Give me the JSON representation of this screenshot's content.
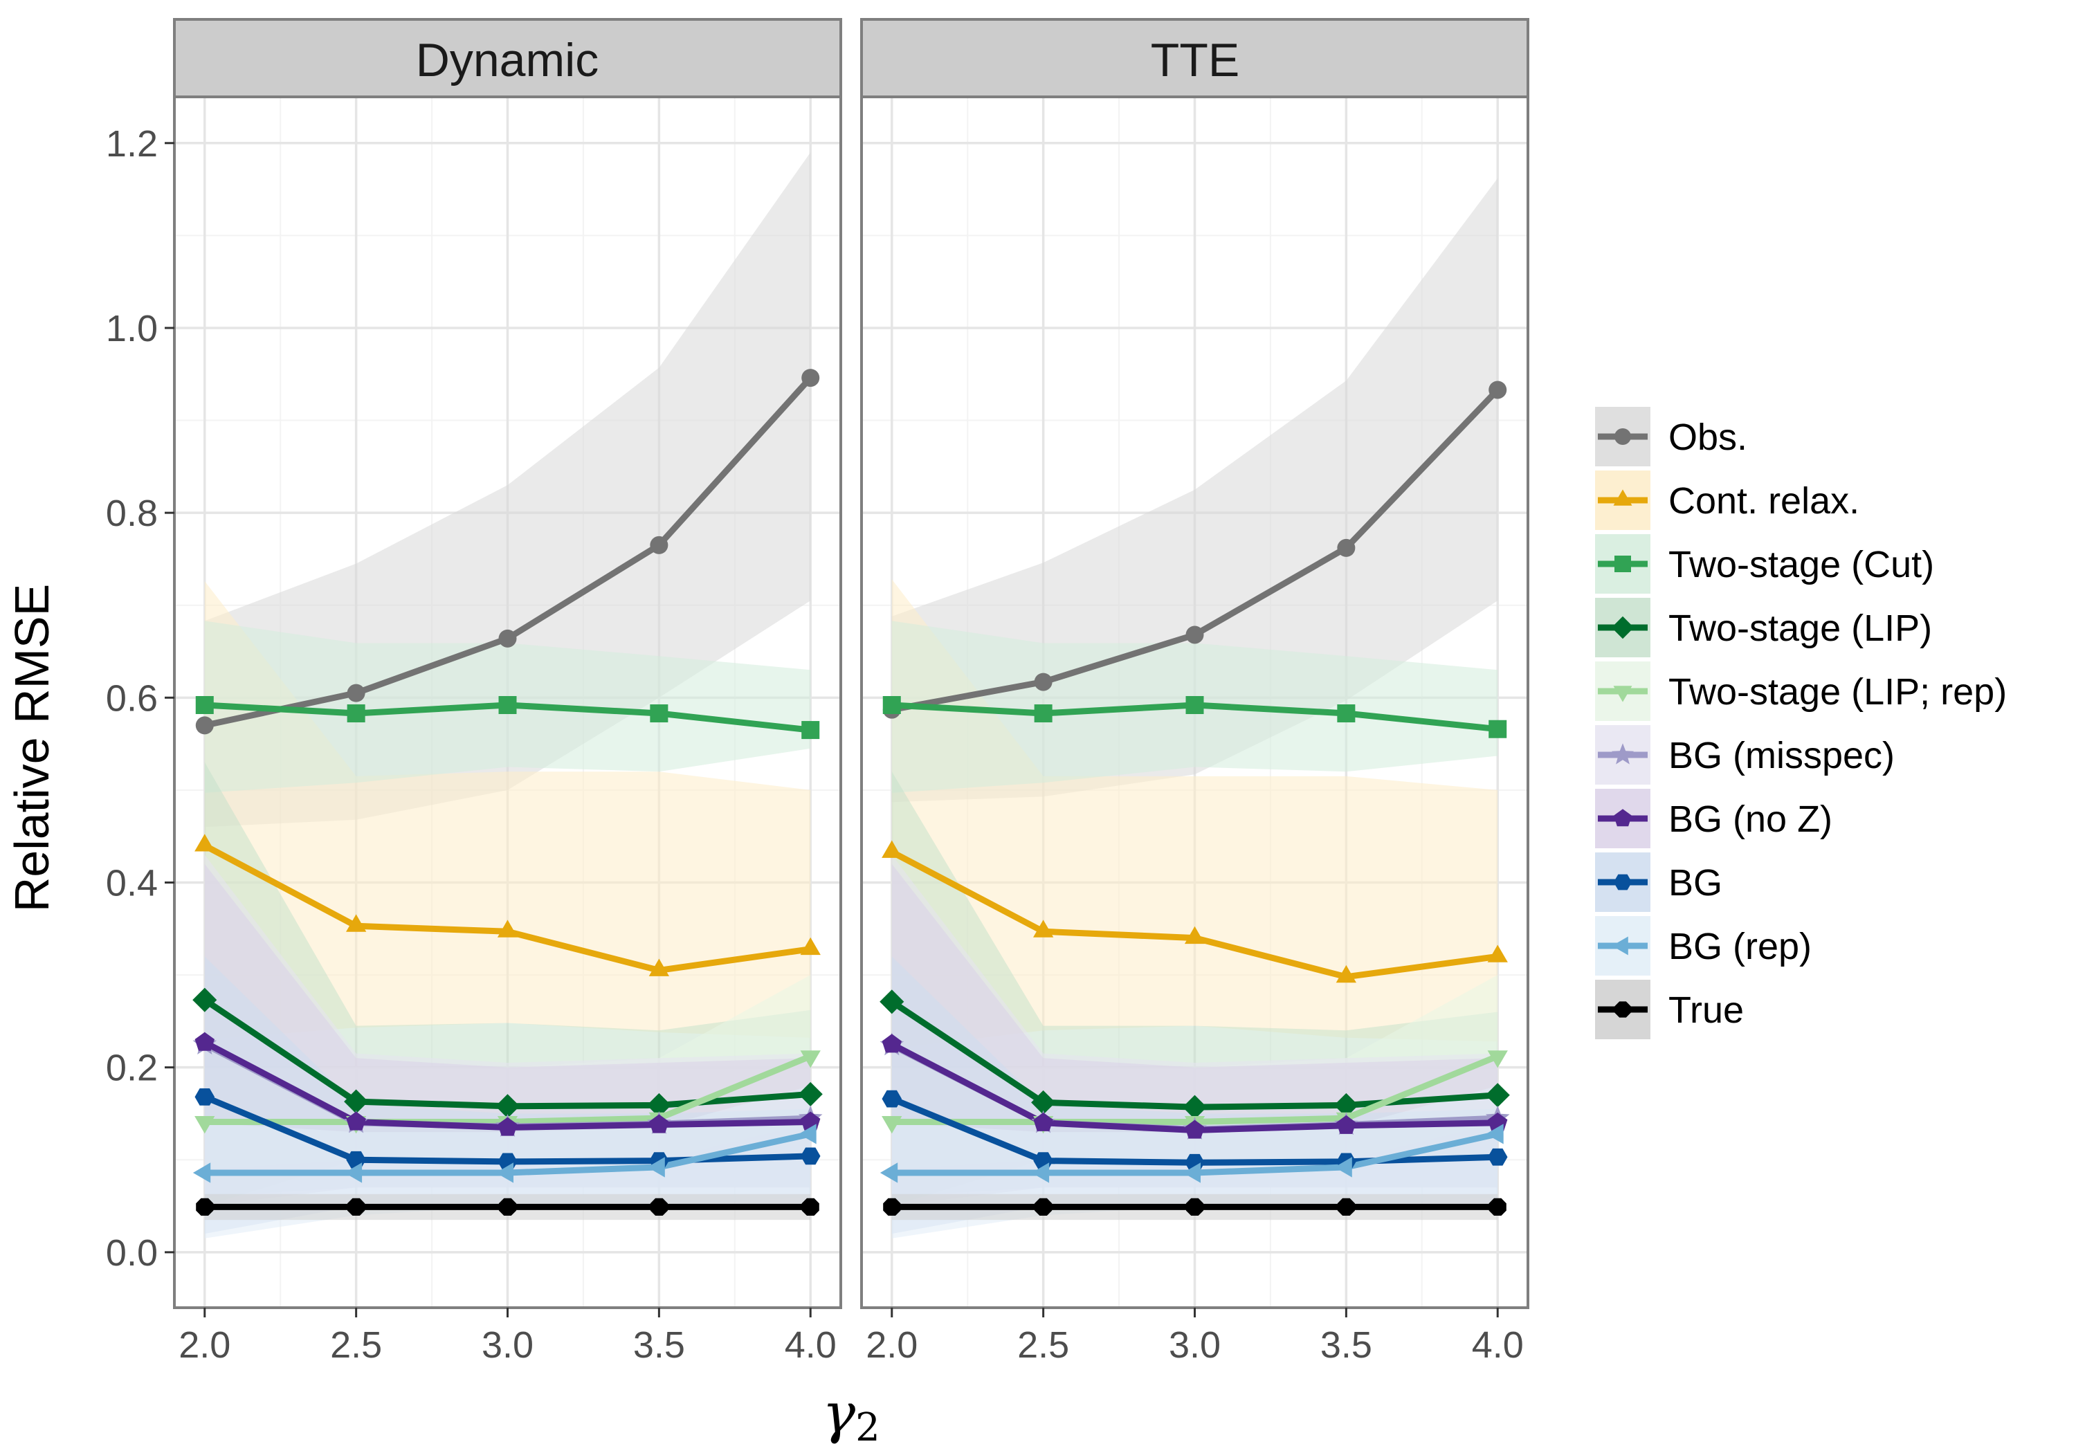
{
  "chart_data": {
    "type": "line",
    "facets": [
      "Dynamic",
      "TTE"
    ],
    "x": [
      2.0,
      2.5,
      3.0,
      3.5,
      4.0
    ],
    "xticks": [
      "2.0",
      "2.5",
      "3.0",
      "3.5",
      "4.0"
    ],
    "yticks": [
      "0.0",
      "0.2",
      "0.4",
      "0.6",
      "0.8",
      "1.0",
      "1.2"
    ],
    "xlabel": "γ",
    "xlabel_sub": "2",
    "ylabel": "Relative RMSE",
    "xlim": [
      1.9,
      4.1
    ],
    "ylim": [
      -0.06,
      1.25
    ],
    "legend_position": "right",
    "series": [
      {
        "name": "Obs.",
        "color": "#737373",
        "fill": "#d9d9d9",
        "marker": "circle",
        "values": {
          "Dynamic": [
            0.57,
            0.605,
            0.664,
            0.765,
            0.946
          ],
          "TTE": [
            0.587,
            0.617,
            0.668,
            0.762,
            0.933
          ]
        },
        "lower": {
          "Dynamic": [
            0.46,
            0.468,
            0.5,
            0.6,
            0.705
          ],
          "TTE": [
            0.487,
            0.493,
            0.517,
            0.597,
            0.705
          ]
        },
        "upper": {
          "Dynamic": [
            0.683,
            0.745,
            0.83,
            0.957,
            1.19
          ],
          "TTE": [
            0.688,
            0.746,
            0.825,
            0.943,
            1.162
          ]
        }
      },
      {
        "name": "Cont. relax.",
        "color": "#E6A80C",
        "fill": "#fdecc8",
        "marker": "triangle",
        "values": {
          "Dynamic": [
            0.44,
            0.353,
            0.347,
            0.305,
            0.328
          ],
          "TTE": [
            0.433,
            0.347,
            0.34,
            0.298,
            0.32
          ]
        },
        "lower": {
          "Dynamic": [
            0.23,
            0.243,
            0.248,
            0.238,
            0.232
          ],
          "TTE": [
            0.22,
            0.24,
            0.245,
            0.232,
            0.228
          ]
        },
        "upper": {
          "Dynamic": [
            0.726,
            0.515,
            0.52,
            0.52,
            0.5
          ],
          "TTE": [
            0.728,
            0.515,
            0.515,
            0.515,
            0.5
          ]
        }
      },
      {
        "name": "Two-stage (Cut)",
        "color": "#31A354",
        "fill": "#d3ecdc",
        "marker": "square",
        "values": {
          "Dynamic": [
            0.592,
            0.583,
            0.592,
            0.583,
            0.565
          ],
          "TTE": [
            0.592,
            0.583,
            0.592,
            0.583,
            0.566
          ]
        },
        "lower": {
          "Dynamic": [
            0.497,
            0.508,
            0.525,
            0.52,
            0.545
          ],
          "TTE": [
            0.497,
            0.508,
            0.525,
            0.52,
            0.537
          ]
        },
        "upper": {
          "Dynamic": [
            0.683,
            0.659,
            0.659,
            0.645,
            0.63
          ],
          "TTE": [
            0.683,
            0.659,
            0.659,
            0.645,
            0.63
          ]
        }
      },
      {
        "name": "Two-stage (LIP)",
        "color": "#006D2C",
        "fill": "#c7e1cc",
        "marker": "diamond",
        "values": {
          "Dynamic": [
            0.273,
            0.163,
            0.158,
            0.159,
            0.171
          ],
          "TTE": [
            0.271,
            0.162,
            0.157,
            0.159,
            0.17
          ]
        },
        "lower": {
          "Dynamic": [
            0.05,
            0.1,
            0.1,
            0.1,
            0.1
          ],
          "TTE": [
            0.05,
            0.1,
            0.1,
            0.1,
            0.1
          ]
        },
        "upper": {
          "Dynamic": [
            0.53,
            0.245,
            0.248,
            0.24,
            0.262
          ],
          "TTE": [
            0.52,
            0.245,
            0.245,
            0.24,
            0.26
          ]
        }
      },
      {
        "name": "Two-stage (LIP; rep)",
        "color": "#A1D99B",
        "fill": "#e8f5e6",
        "marker": "triangle-down",
        "values": {
          "Dynamic": [
            0.141,
            0.141,
            0.141,
            0.145,
            0.212
          ],
          "TTE": [
            0.141,
            0.141,
            0.141,
            0.145,
            0.212
          ]
        },
        "lower": {
          "Dynamic": [
            0.09,
            0.1,
            0.1,
            0.1,
            0.14
          ],
          "TTE": [
            0.09,
            0.1,
            0.1,
            0.1,
            0.14
          ]
        },
        "upper": {
          "Dynamic": [
            0.2,
            0.2,
            0.2,
            0.21,
            0.3
          ],
          "TTE": [
            0.2,
            0.2,
            0.2,
            0.21,
            0.3
          ]
        }
      },
      {
        "name": "BG (misspec)",
        "color": "#9E9AC8",
        "fill": "#e6e4f1",
        "marker": "star",
        "values": {
          "Dynamic": [
            0.225,
            0.14,
            0.136,
            0.139,
            0.145
          ],
          "TTE": [
            0.224,
            0.14,
            0.133,
            0.138,
            0.145
          ]
        },
        "lower": {
          "Dynamic": [
            0.06,
            0.07,
            0.07,
            0.07,
            0.07
          ],
          "TTE": [
            0.06,
            0.07,
            0.07,
            0.07,
            0.07
          ]
        },
        "upper": {
          "Dynamic": [
            0.43,
            0.215,
            0.205,
            0.21,
            0.215
          ],
          "TTE": [
            0.43,
            0.215,
            0.205,
            0.21,
            0.215
          ]
        }
      },
      {
        "name": "BG (no Z)",
        "color": "#54278F",
        "fill": "#dad1e8",
        "marker": "pentagon",
        "values": {
          "Dynamic": [
            0.227,
            0.141,
            0.135,
            0.138,
            0.141
          ],
          "TTE": [
            0.225,
            0.14,
            0.132,
            0.137,
            0.14
          ]
        },
        "lower": {
          "Dynamic": [
            0.05,
            0.07,
            0.07,
            0.07,
            0.07
          ],
          "TTE": [
            0.05,
            0.07,
            0.07,
            0.07,
            0.07
          ]
        },
        "upper": {
          "Dynamic": [
            0.42,
            0.21,
            0.2,
            0.205,
            0.21
          ],
          "TTE": [
            0.42,
            0.21,
            0.2,
            0.205,
            0.21
          ]
        }
      },
      {
        "name": "BG",
        "color": "#08519C",
        "fill": "#cedcee",
        "marker": "hexagon",
        "values": {
          "Dynamic": [
            0.168,
            0.1,
            0.098,
            0.099,
            0.104
          ],
          "TTE": [
            0.166,
            0.099,
            0.097,
            0.098,
            0.103
          ]
        },
        "lower": {
          "Dynamic": [
            0.02,
            0.05,
            0.05,
            0.05,
            0.05
          ],
          "TTE": [
            0.02,
            0.05,
            0.05,
            0.05,
            0.05
          ]
        },
        "upper": {
          "Dynamic": [
            0.32,
            0.16,
            0.15,
            0.15,
            0.155
          ],
          "TTE": [
            0.32,
            0.16,
            0.15,
            0.15,
            0.155
          ]
        }
      },
      {
        "name": "BG (rep)",
        "color": "#6BAED6",
        "fill": "#e1edf7",
        "marker": "triangle-left",
        "values": {
          "Dynamic": [
            0.086,
            0.086,
            0.086,
            0.092,
            0.128
          ],
          "TTE": [
            0.086,
            0.086,
            0.086,
            0.092,
            0.128
          ]
        },
        "lower": {
          "Dynamic": [
            0.015,
            0.04,
            0.05,
            0.05,
            0.06
          ],
          "TTE": [
            0.015,
            0.04,
            0.05,
            0.05,
            0.06
          ]
        },
        "upper": {
          "Dynamic": [
            0.14,
            0.13,
            0.13,
            0.135,
            0.18
          ],
          "TTE": [
            0.14,
            0.13,
            0.13,
            0.135,
            0.18
          ]
        }
      },
      {
        "name": "True",
        "color": "#000000",
        "fill": "#cfcfcf",
        "marker": "octagon",
        "values": {
          "Dynamic": [
            0.049,
            0.049,
            0.049,
            0.049,
            0.049
          ],
          "TTE": [
            0.049,
            0.049,
            0.049,
            0.049,
            0.049
          ]
        },
        "lower": {
          "Dynamic": [
            0.035,
            0.035,
            0.035,
            0.035,
            0.035
          ],
          "TTE": [
            0.035,
            0.035,
            0.035,
            0.035,
            0.035
          ]
        },
        "upper": {
          "Dynamic": [
            0.063,
            0.063,
            0.063,
            0.063,
            0.063
          ],
          "TTE": [
            0.063,
            0.063,
            0.063,
            0.063,
            0.063
          ]
        }
      }
    ]
  }
}
